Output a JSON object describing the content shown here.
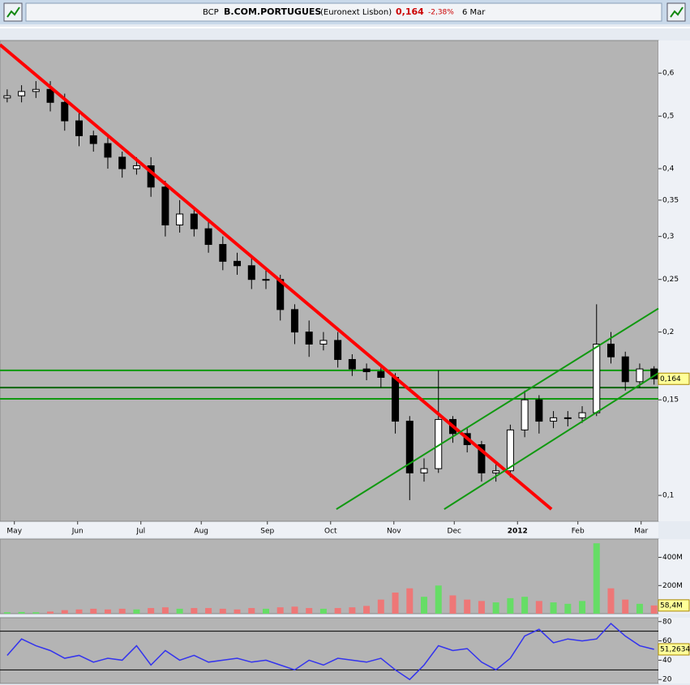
{
  "header": {
    "symbol": "BCP",
    "name": "B.COM.PORTUGUES",
    "exchange": "(Euronext Lisbon)",
    "price": "0,164",
    "change": "-2,38%",
    "date": "6 Mar"
  },
  "chart_data": [
    {
      "type": "candlestick",
      "log_scale": true,
      "x": [
        2.5,
        7.5,
        12.5,
        17.5,
        22.5,
        27.5,
        32.5,
        37.5,
        42.5,
        47.5,
        52.5,
        57.5,
        62.5,
        67.5,
        72.5,
        77.5,
        82.5,
        87.5,
        92.5,
        97.5,
        102.5,
        107.5,
        112.5,
        117.5,
        122.5,
        127.5,
        132.5,
        137.5,
        142.5,
        147.5,
        152.5,
        157.5,
        162.5,
        167.5,
        172.5,
        177.5,
        182.5,
        187.5,
        192.5,
        197.5,
        202.5,
        207.5,
        212.5,
        217.5,
        222.5,
        227.5
      ],
      "open": [
        0.54,
        0.545,
        0.555,
        0.56,
        0.53,
        0.49,
        0.46,
        0.445,
        0.42,
        0.4,
        0.405,
        0.37,
        0.315,
        0.33,
        0.31,
        0.29,
        0.27,
        0.265,
        0.25,
        0.25,
        0.22,
        0.2,
        0.19,
        0.193,
        0.178,
        0.171,
        0.169,
        0.165,
        0.137,
        0.11,
        0.112,
        0.138,
        0.13,
        0.124,
        0.11,
        0.111,
        0.132,
        0.15,
        0.137,
        0.139,
        0.139,
        0.142,
        0.19,
        0.18,
        0.162,
        0.171
      ],
      "high": [
        0.56,
        0.57,
        0.58,
        0.58,
        0.55,
        0.51,
        0.47,
        0.46,
        0.43,
        0.42,
        0.42,
        0.38,
        0.35,
        0.34,
        0.32,
        0.3,
        0.28,
        0.275,
        0.26,
        0.255,
        0.225,
        0.21,
        0.2,
        0.2,
        0.182,
        0.175,
        0.172,
        0.168,
        0.14,
        0.117,
        0.17,
        0.14,
        0.133,
        0.126,
        0.114,
        0.135,
        0.156,
        0.153,
        0.143,
        0.143,
        0.146,
        0.225,
        0.2,
        0.184,
        0.175,
        0.173
      ],
      "low": [
        0.53,
        0.53,
        0.54,
        0.51,
        0.47,
        0.44,
        0.43,
        0.4,
        0.385,
        0.39,
        0.355,
        0.3,
        0.305,
        0.3,
        0.28,
        0.26,
        0.255,
        0.24,
        0.24,
        0.21,
        0.19,
        0.18,
        0.185,
        0.172,
        0.166,
        0.163,
        0.158,
        0.13,
        0.098,
        0.106,
        0.11,
        0.125,
        0.12,
        0.106,
        0.106,
        0.108,
        0.128,
        0.13,
        0.133,
        0.134,
        0.136,
        0.14,
        0.175,
        0.156,
        0.158,
        0.16
      ],
      "close": [
        0.545,
        0.555,
        0.56,
        0.53,
        0.49,
        0.46,
        0.445,
        0.42,
        0.4,
        0.405,
        0.37,
        0.315,
        0.33,
        0.31,
        0.29,
        0.27,
        0.265,
        0.25,
        0.25,
        0.22,
        0.2,
        0.19,
        0.193,
        0.178,
        0.171,
        0.169,
        0.165,
        0.137,
        0.11,
        0.112,
        0.138,
        0.13,
        0.124,
        0.11,
        0.111,
        0.132,
        0.15,
        0.137,
        0.139,
        0.139,
        0.142,
        0.19,
        0.18,
        0.162,
        0.171,
        0.164
      ],
      "up_color": "#ffffff",
      "down_color": "#000000",
      "xlim": [
        0,
        229
      ],
      "xticks": [
        {
          "value": 5,
          "label": "May"
        },
        {
          "value": 27,
          "label": "Jun"
        },
        {
          "value": 49,
          "label": "Jul"
        },
        {
          "value": 70,
          "label": "Aug"
        },
        {
          "value": 93,
          "label": "Sep"
        },
        {
          "value": 115,
          "label": "Oct"
        },
        {
          "value": 137,
          "label": "Nov"
        },
        {
          "value": 158,
          "label": "Dec"
        },
        {
          "value": 180,
          "label": "2012"
        },
        {
          "value": 201,
          "label": "Feb"
        },
        {
          "value": 223,
          "label": "Mar"
        }
      ],
      "ylim": [
        0.0896,
        0.689
      ],
      "yticks": [
        {
          "value": 0.1,
          "label": "0,1"
        },
        {
          "value": 0.15,
          "label": "0,15"
        },
        {
          "value": 0.2,
          "label": "0,2"
        },
        {
          "value": 0.25,
          "label": "0,25"
        },
        {
          "value": 0.3,
          "label": "0,3"
        },
        {
          "value": 0.35,
          "label": "0,35"
        },
        {
          "value": 0.4,
          "label": "0,4"
        },
        {
          "value": 0.5,
          "label": "0,5"
        },
        {
          "value": 0.6,
          "label": "0,6"
        }
      ],
      "last": {
        "value": 0.164,
        "label": "0,164"
      },
      "trendlines": [
        {
          "color": "#ff0000",
          "x": [
            0,
            191.8
          ],
          "values": [
            0.677,
            0.0943
          ]
        },
        {
          "color": "#119911",
          "x": [
            117,
            229
          ],
          "values": [
            0.0943,
            0.221
          ]
        },
        {
          "color": "#119911",
          "x": [
            154.5,
            229
          ],
          "values": [
            0.0943,
            0.168
          ]
        }
      ],
      "hlines": [
        {
          "color": "#119911",
          "value": 0.17
        },
        {
          "color": "#006600",
          "value": 0.158
        },
        {
          "color": "#119911",
          "value": 0.1506
        }
      ]
    },
    {
      "type": "bar",
      "x": [
        2.5,
        7.5,
        12.5,
        17.5,
        22.5,
        27.5,
        32.5,
        37.5,
        42.5,
        47.5,
        52.5,
        57.5,
        62.5,
        67.5,
        72.5,
        77.5,
        82.5,
        87.5,
        92.5,
        97.5,
        102.5,
        107.5,
        112.5,
        117.5,
        122.5,
        127.5,
        132.5,
        137.5,
        142.5,
        147.5,
        152.5,
        157.5,
        162.5,
        167.5,
        172.5,
        177.5,
        182.5,
        187.5,
        192.5,
        197.5,
        202.5,
        207.5,
        212.5,
        217.5,
        222.5,
        227.5
      ],
      "values": [
        10000000,
        12000000,
        10000000,
        15000000,
        25000000,
        30000000,
        35000000,
        30000000,
        35000000,
        30000000,
        40000000,
        45000000,
        35000000,
        40000000,
        40000000,
        35000000,
        30000000,
        40000000,
        35000000,
        45000000,
        50000000,
        40000000,
        35000000,
        40000000,
        45000000,
        55000000,
        100000000,
        150000000,
        180000000,
        120000000,
        200000000,
        130000000,
        100000000,
        90000000,
        80000000,
        110000000,
        120000000,
        90000000,
        80000000,
        70000000,
        90000000,
        500000000,
        180000000,
        100000000,
        70000000,
        58400000
      ],
      "up_color": "#66dd66",
      "down_color": "#ee7777",
      "xlim": [
        0,
        229
      ],
      "ylim": [
        0,
        530000000
      ],
      "yticks": [
        {
          "value": 200000000,
          "label": "200M"
        },
        {
          "value": 400000000,
          "label": "400M"
        }
      ],
      "last": {
        "value": 58400000,
        "label": "58,4M"
      }
    },
    {
      "type": "line",
      "x": [
        2.5,
        7.5,
        12.5,
        17.5,
        22.5,
        27.5,
        32.5,
        37.5,
        42.5,
        47.5,
        52.5,
        57.5,
        62.5,
        67.5,
        72.5,
        77.5,
        82.5,
        87.5,
        92.5,
        97.5,
        102.5,
        107.5,
        112.5,
        117.5,
        122.5,
        127.5,
        132.5,
        137.5,
        142.5,
        147.5,
        152.5,
        157.5,
        162.5,
        167.5,
        172.5,
        177.5,
        182.5,
        187.5,
        192.5,
        197.5,
        202.5,
        207.5,
        212.5,
        217.5,
        222.5,
        227.5
      ],
      "values": [
        45,
        62,
        55,
        50,
        42,
        45,
        38,
        42,
        40,
        55,
        35,
        50,
        40,
        45,
        38,
        40,
        42,
        38,
        40,
        35,
        30,
        40,
        35,
        42,
        40,
        38,
        42,
        30,
        20,
        35,
        55,
        50,
        52,
        38,
        30,
        42,
        65,
        72,
        58,
        62,
        60,
        62,
        78,
        65,
        55,
        51.2634
      ],
      "color": "#3333ee",
      "xlim": [
        0,
        229
      ],
      "ylim": [
        16,
        84
      ],
      "yticks": [
        20,
        40,
        60,
        80
      ],
      "hlines": [
        {
          "color": "#000000",
          "value": 70
        },
        {
          "color": "#000000",
          "value": 30
        }
      ],
      "last": {
        "value": 51.2634,
        "label": "51,2634"
      }
    }
  ]
}
